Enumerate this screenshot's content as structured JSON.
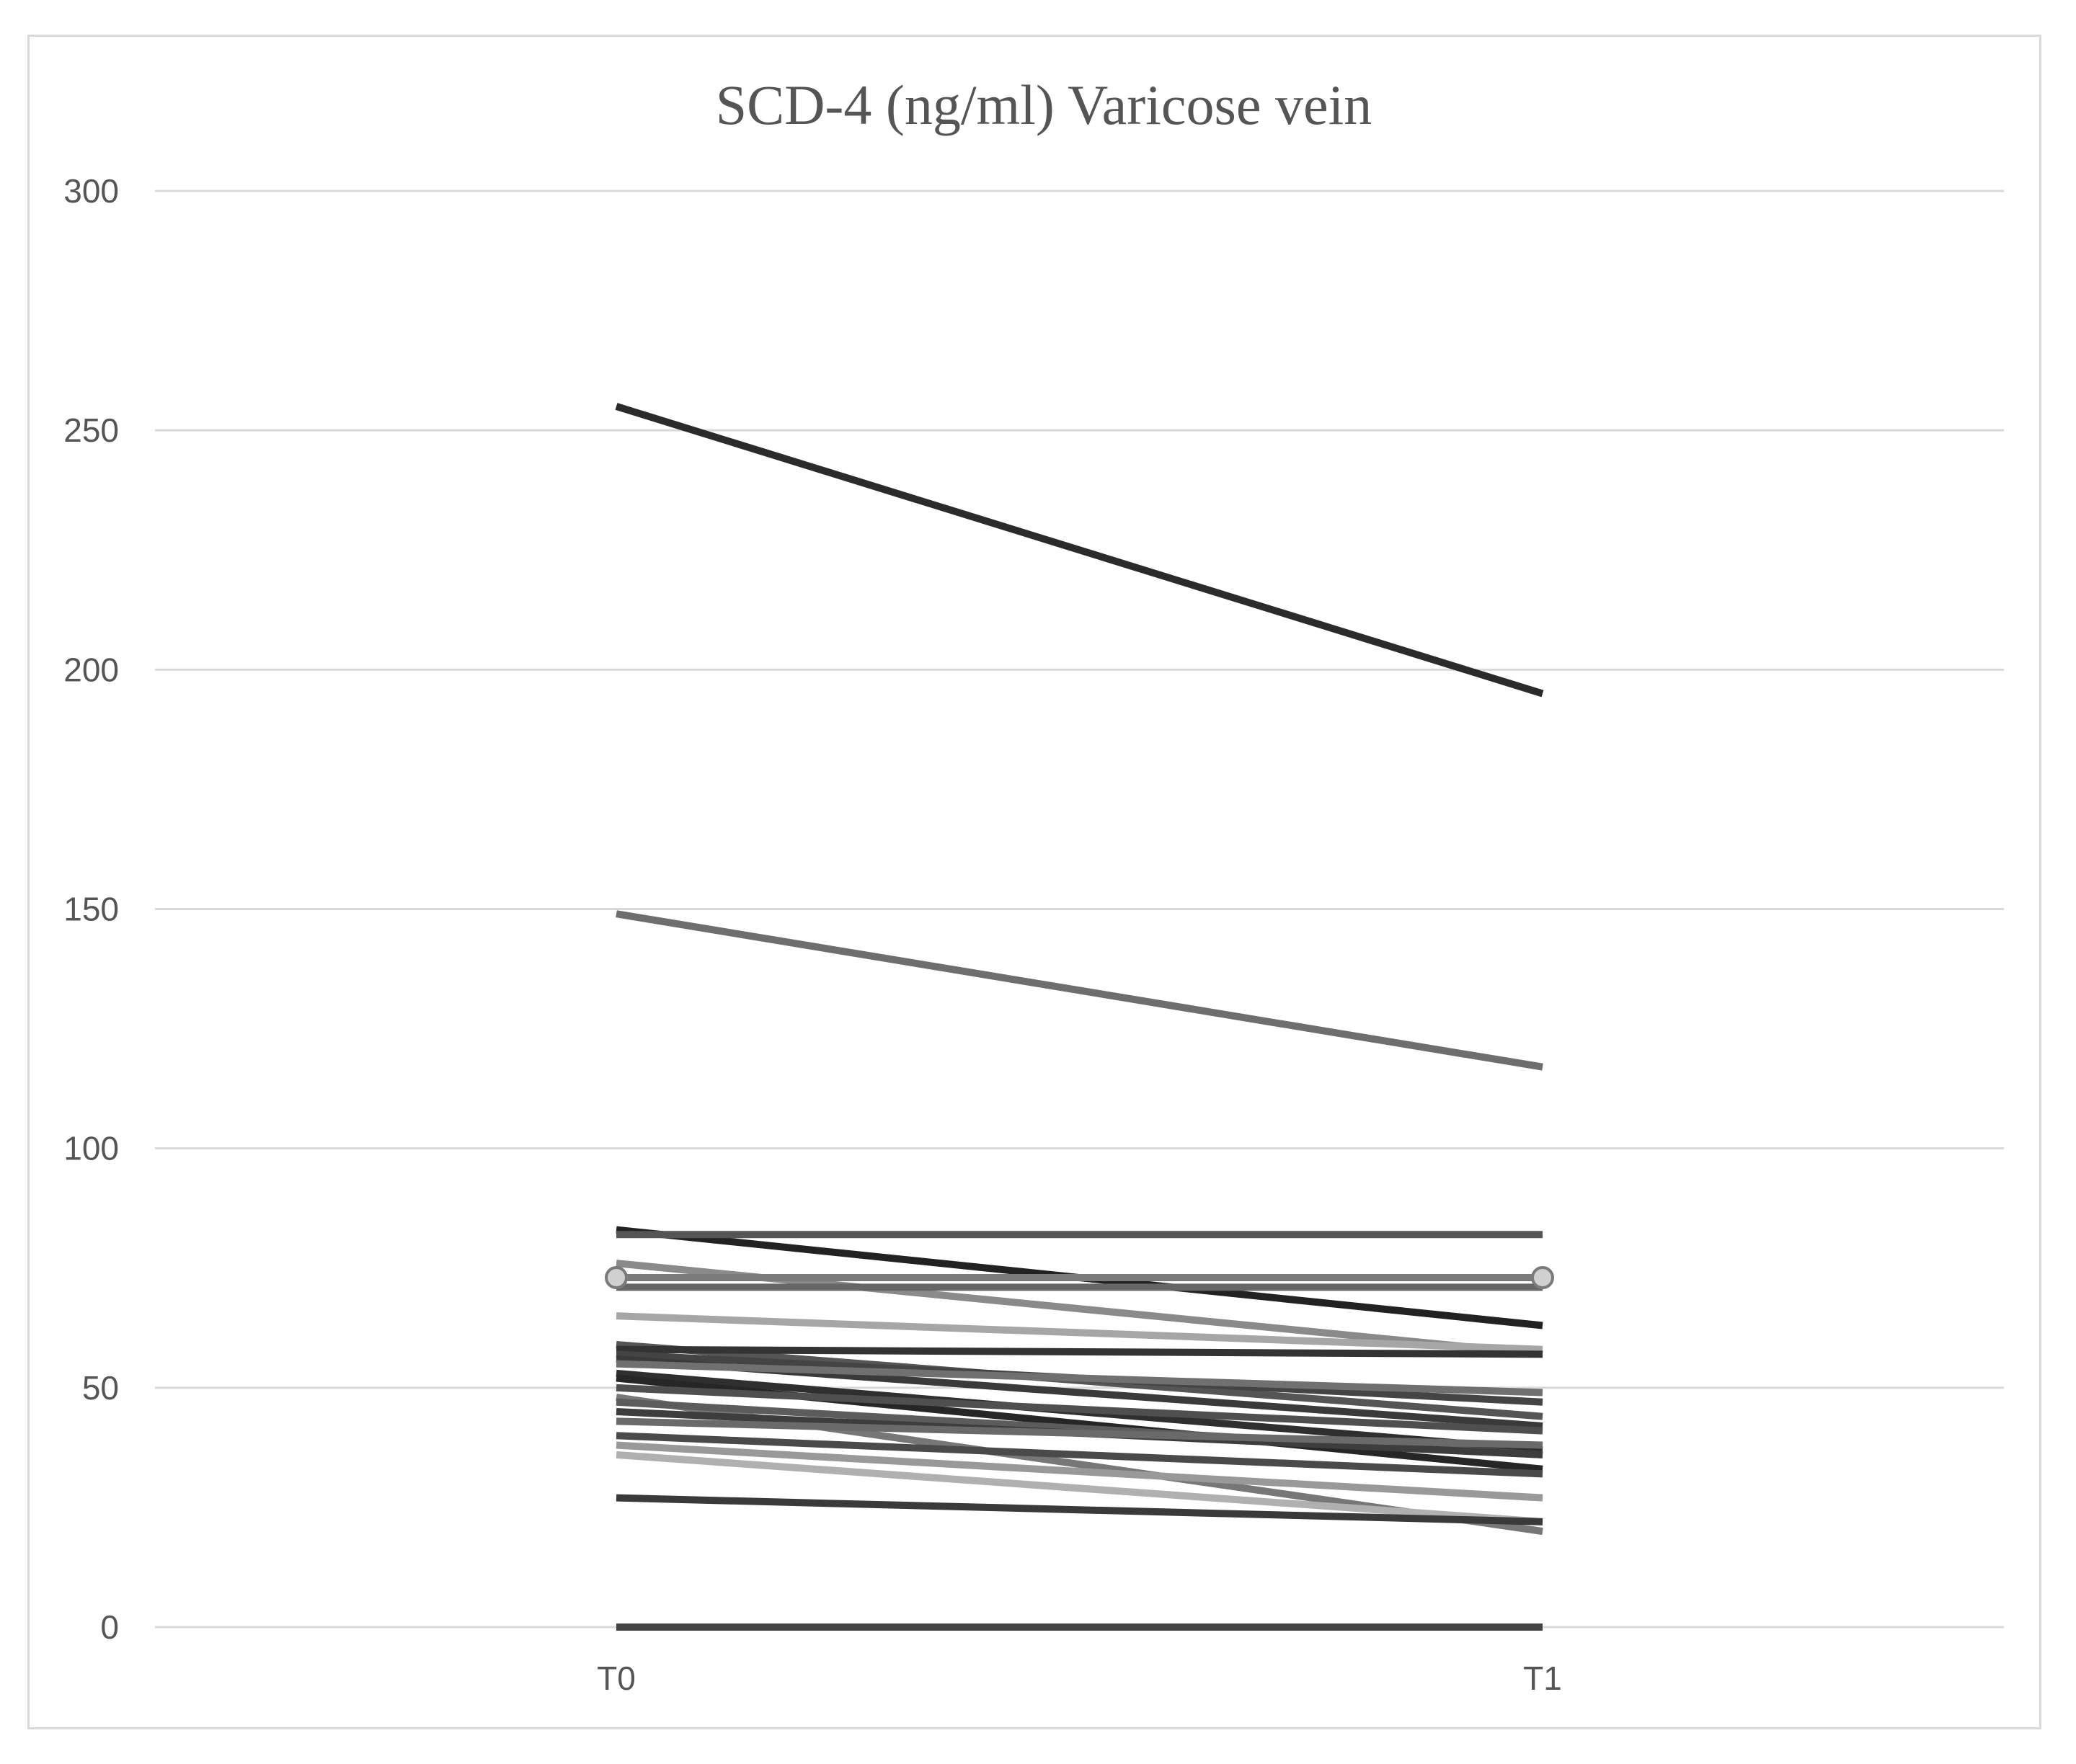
{
  "chart_data": {
    "type": "line",
    "title": "SCD-4 (ng/ml) Varicose vein",
    "xlabel": "",
    "ylabel": "",
    "categories": [
      "T0",
      "T1"
    ],
    "ylim": [
      0,
      300
    ],
    "yticks": [
      "0",
      "50",
      "100",
      "150",
      "200",
      "250",
      "300"
    ],
    "grid": true,
    "legend": "none",
    "series": [
      {
        "values": [
          255,
          195
        ],
        "color": "#2b2b2b"
      },
      {
        "values": [
          149,
          117
        ],
        "color": "#6e6e6e"
      },
      {
        "values": [
          83,
          63
        ],
        "color": "#222222"
      },
      {
        "values": [
          82,
          82
        ],
        "color": "#555555"
      },
      {
        "values": [
          76,
          57
        ],
        "color": "#8a8a8a"
      },
      {
        "values": [
          73,
          73
        ],
        "color": "#7a7a7a",
        "markers": true
      },
      {
        "values": [
          71,
          71
        ],
        "color": "#666666"
      },
      {
        "values": [
          65,
          58
        ],
        "color": "#a6a6a6"
      },
      {
        "values": [
          59,
          44
        ],
        "color": "#555555"
      },
      {
        "values": [
          58,
          57
        ],
        "color": "#333333"
      },
      {
        "values": [
          57,
          47
        ],
        "color": "#444444"
      },
      {
        "values": [
          56,
          42
        ],
        "color": "#3a3a3a"
      },
      {
        "values": [
          55,
          49
        ],
        "color": "#707070"
      },
      {
        "values": [
          53,
          37
        ],
        "color": "#2f2f2f"
      },
      {
        "values": [
          52,
          33
        ],
        "color": "#262626"
      },
      {
        "values": [
          50,
          41
        ],
        "color": "#4f4f4f"
      },
      {
        "values": [
          48,
          20
        ],
        "color": "#777777"
      },
      {
        "values": [
          47,
          36
        ],
        "color": "#5c5c5c"
      },
      {
        "values": [
          45,
          36
        ],
        "color": "#3d3d3d"
      },
      {
        "values": [
          43,
          38
        ],
        "color": "#6a6a6a"
      },
      {
        "values": [
          40,
          32
        ],
        "color": "#4a4a4a"
      },
      {
        "values": [
          38,
          27
        ],
        "color": "#999999"
      },
      {
        "values": [
          36,
          22
        ],
        "color": "#b0b0b0"
      },
      {
        "values": [
          27,
          22
        ],
        "color": "#3a3a3a"
      },
      {
        "values": [
          0,
          0
        ],
        "color": "#444444"
      }
    ]
  }
}
